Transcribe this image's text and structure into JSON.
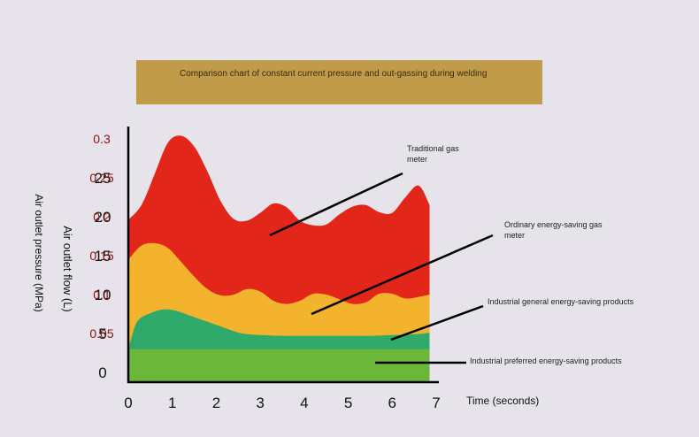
{
  "chart_data": {
    "type": "area",
    "title": "Comparison chart of constant current pressure and out-gassing during welding",
    "xlabel": "Time (seconds)",
    "ylabel": "Air outlet flow (L)",
    "ylabel_secondary": "Air outlet pressure (MPa)",
    "xlim": [
      0,
      7
    ],
    "ylim": [
      0,
      30
    ],
    "ylim_secondary": [
      0,
      0.3
    ],
    "x_ticks": [
      "0",
      "1",
      "2",
      "3",
      "4",
      "5",
      "6",
      "7"
    ],
    "y_ticks": [
      "0",
      "5",
      "10",
      "15",
      "20",
      "25"
    ],
    "y_ticks_secondary": [
      "0.05",
      "0.1",
      "0.15",
      "0.2",
      "0.25",
      "0.3"
    ],
    "series": [
      {
        "name": "Traditional gas meter",
        "color": "#e3261a",
        "x": [
          0,
          0.3,
          0.6,
          0.9,
          1.2,
          1.5,
          1.8,
          2.1,
          2.4,
          2.7,
          3.0,
          3.3,
          3.6,
          3.9,
          4.2,
          4.5,
          4.8,
          5.1,
          5.4,
          5.7,
          6.0,
          6.3,
          6.6,
          6.85
        ],
        "values": [
          19.6,
          21.5,
          25.5,
          29.5,
          30.4,
          29.0,
          25.8,
          22.0,
          19.7,
          19.5,
          20.5,
          21.7,
          21.2,
          19.5,
          18.9,
          19.0,
          20.3,
          21.3,
          21.5,
          20.6,
          20.5,
          22.5,
          24.0,
          21.5
        ]
      },
      {
        "name": "Ordinary energy-saving gas meter",
        "color": "#f3b32d",
        "x": [
          0,
          0.3,
          0.6,
          0.9,
          1.2,
          1.5,
          1.8,
          2.1,
          2.4,
          2.7,
          3.0,
          3.3,
          3.6,
          3.9,
          4.2,
          4.5,
          4.8,
          5.1,
          5.4,
          5.7,
          6.0,
          6.3,
          6.6,
          6.85
        ],
        "values": [
          14.5,
          16.3,
          16.6,
          16.0,
          14.2,
          12.3,
          10.7,
          9.9,
          10.0,
          10.7,
          10.4,
          9.2,
          8.8,
          9.2,
          10.1,
          10.0,
          9.4,
          8.8,
          9.0,
          10.1,
          10.1,
          9.5,
          9.7,
          10.0
        ]
      },
      {
        "name": "Industrial general energy-saving products",
        "color": "#30aa6a",
        "x": [
          0,
          0.2,
          0.5,
          0.8,
          1.1,
          1.4,
          1.7,
          2.0,
          2.3,
          2.6,
          3.0,
          3.5,
          4.0,
          4.5,
          5.0,
          5.5,
          6.0,
          6.5,
          6.85
        ],
        "values": [
          3.0,
          6.5,
          7.6,
          8.1,
          7.9,
          7.3,
          6.7,
          6.1,
          5.5,
          5.0,
          4.8,
          4.7,
          4.7,
          4.7,
          4.7,
          4.7,
          4.8,
          4.9,
          5.1
        ]
      },
      {
        "name": "Industrial preferred energy-saving products",
        "color": "#6ab73a",
        "x": [
          0,
          6.85
        ],
        "values": [
          3.0,
          3.0
        ]
      }
    ],
    "annotations": [
      "Traditional gas meter",
      "Ordinary energy-saving gas meter",
      "Industrial general energy-saving products",
      "Industrial preferred energy-saving products"
    ]
  }
}
